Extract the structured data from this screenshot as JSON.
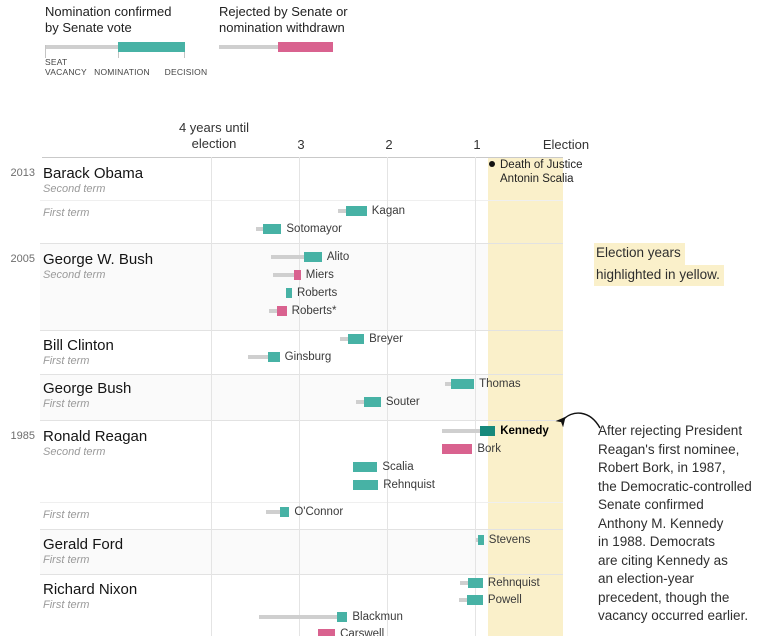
{
  "legend": {
    "confirmed": {
      "line1": "Nomination confirmed",
      "line2": "by Senate vote",
      "stage1a": "SEAT",
      "stage1b": "VACANCY",
      "stage2": "NOMINATION",
      "stage3": "DECISION"
    },
    "rejected": {
      "line1": "Rejected by Senate or",
      "line2": "nomination withdrawn"
    }
  },
  "annotations": {
    "scalia": {
      "line1": "Death of Justice",
      "line2": "Antonin Scalia",
      "dot": "●"
    },
    "election_note": {
      "line1": "Election years",
      "line2": "highlighted in yellow."
    },
    "kennedy_note": {
      "lines": [
        "After rejecting President",
        "Reagan's first nominee,",
        "Robert Bork, in 1987,",
        "the Democratic-controlled",
        "Senate confirmed",
        "Anthony M. Kennedy",
        "in 1988. Democrats",
        "are citing Kennedy as",
        "an election-year",
        "precedent, though the",
        "vacancy occurred earlier."
      ]
    }
  },
  "chart_data": {
    "type": "bar",
    "variant": "horizontal-timeline-gantt",
    "x_axis": {
      "unit": "years until election",
      "ticks": [
        {
          "label": "4 years until",
          "label2": "election",
          "years": 4
        },
        {
          "label": "3",
          "years": 3
        },
        {
          "label": "2",
          "years": 2
        },
        {
          "label": "1",
          "years": 1
        },
        {
          "label": "Election",
          "years": 0
        }
      ],
      "election_year_band": {
        "from_years": 0.85,
        "to_years": 0
      }
    },
    "colors": {
      "confirmed": "#47b2a5",
      "confirmed_highlight": "#17897b",
      "rejected": "#d9628f",
      "vacancy_line": "#cfcfcf",
      "election_band": "#faf0ca",
      "shaded_row": "#fafafa"
    },
    "blocks": [
      {
        "id": "obama2",
        "year_label": "2013",
        "president": "Barack Obama",
        "term": "Second term",
        "shaded": false,
        "nominees": []
      },
      {
        "id": "obama1",
        "year_label": "",
        "president": "",
        "term": "First term",
        "shaded": false,
        "nominees": [
          {
            "name": "Kagan",
            "outcome": "confirmed",
            "vacancy": 2.56,
            "nomination": 2.47,
            "decision": 2.23
          },
          {
            "name": "Sotomayor",
            "outcome": "confirmed",
            "vacancy": 3.49,
            "nomination": 3.41,
            "decision": 3.2
          }
        ]
      },
      {
        "id": "gwb2",
        "year_label": "2005",
        "president": "George W. Bush",
        "term": "Second term",
        "shaded": true,
        "nominees": [
          {
            "name": "Alito",
            "outcome": "confirmed",
            "vacancy": 3.32,
            "nomination": 2.94,
            "decision": 2.74
          },
          {
            "name": "Miers",
            "outcome": "rejected",
            "vacancy": 3.3,
            "nomination": 3.06,
            "decision": 2.98
          },
          {
            "name": "Roberts",
            "outcome": "confirmed",
            "vacancy": 3.15,
            "nomination": 3.15,
            "decision": 3.08
          },
          {
            "name": "Roberts*",
            "outcome": "rejected",
            "vacancy": 3.34,
            "nomination": 3.25,
            "decision": 3.14
          }
        ]
      },
      {
        "id": "clinton1",
        "year_label": "",
        "president": "Bill Clinton",
        "term": "First term",
        "shaded": false,
        "nominees": [
          {
            "name": "Breyer",
            "outcome": "confirmed",
            "vacancy": 2.53,
            "nomination": 2.44,
            "decision": 2.26
          },
          {
            "name": "Ginsburg",
            "outcome": "confirmed",
            "vacancy": 3.58,
            "nomination": 3.35,
            "decision": 3.22
          }
        ]
      },
      {
        "id": "bush41",
        "year_label": "",
        "president": "George Bush",
        "term": "First term",
        "shaded": true,
        "nominees": [
          {
            "name": "Thomas",
            "outcome": "confirmed",
            "vacancy": 1.34,
            "nomination": 1.27,
            "decision": 1.01
          },
          {
            "name": "Souter",
            "outcome": "confirmed",
            "vacancy": 2.35,
            "nomination": 2.26,
            "decision": 2.07
          }
        ]
      },
      {
        "id": "reagan2",
        "year_label": "1985",
        "president": "Ronald Reagan",
        "term": "Second term",
        "shaded": false,
        "nominees": [
          {
            "name": "Kennedy",
            "outcome": "confirmed",
            "highlight": true,
            "vacancy": 1.38,
            "nomination": 0.94,
            "decision": 0.77
          },
          {
            "name": "Bork",
            "outcome": "rejected",
            "vacancy": 1.38,
            "nomination": 1.38,
            "decision": 1.03
          },
          {
            "name": "Scalia",
            "outcome": "confirmed",
            "vacancy": 2.39,
            "nomination": 2.39,
            "decision": 2.11
          },
          {
            "name": "Rehnquist",
            "outcome": "confirmed",
            "vacancy": 2.39,
            "nomination": 2.39,
            "decision": 2.1
          }
        ]
      },
      {
        "id": "reagan1",
        "year_label": "",
        "president": "",
        "term": "First term",
        "shaded": false,
        "nominees": [
          {
            "name": "O'Connor",
            "outcome": "confirmed",
            "vacancy": 3.38,
            "nomination": 3.22,
            "decision": 3.11
          }
        ]
      },
      {
        "id": "ford1",
        "year_label": "",
        "president": "Gerald Ford",
        "term": "First term",
        "shaded": true,
        "nominees": [
          {
            "name": "Stevens",
            "outcome": "confirmed",
            "vacancy": 0.99,
            "nomination": 0.97,
            "decision": 0.9
          }
        ]
      },
      {
        "id": "nixon1",
        "year_label": "",
        "president": "Richard Nixon",
        "term": "First term",
        "shaded": false,
        "nominees": [
          {
            "name": "Rehnquist",
            "outcome": "confirmed",
            "vacancy": 1.17,
            "nomination": 1.08,
            "decision": 0.91
          },
          {
            "name": "Powell",
            "outcome": "confirmed",
            "vacancy": 1.18,
            "nomination": 1.09,
            "decision": 0.91
          },
          {
            "name": "Blackmun",
            "outcome": "confirmed",
            "vacancy": 3.45,
            "nomination": 2.57,
            "decision": 2.45
          },
          {
            "name": "Carswell",
            "outcome": "rejected",
            "vacancy": 2.78,
            "nomination": 2.78,
            "decision": 2.59
          }
        ]
      }
    ]
  }
}
